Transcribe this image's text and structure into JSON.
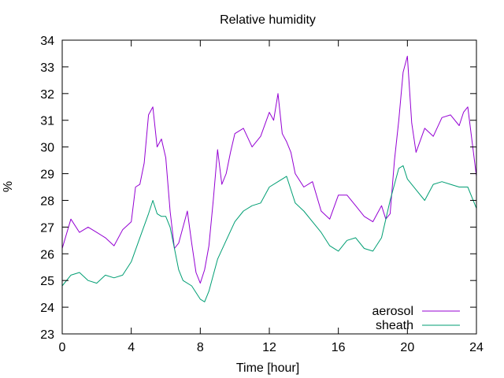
{
  "chart_data": {
    "type": "line",
    "title": "Relative humidity",
    "xlabel": "Time [hour]",
    "ylabel": "%",
    "xlim": [
      0,
      24
    ],
    "ylim": [
      23,
      34
    ],
    "xticks": [
      0,
      4,
      8,
      12,
      16,
      20,
      24
    ],
    "yticks": [
      23,
      24,
      25,
      26,
      27,
      28,
      29,
      30,
      31,
      32,
      33,
      34
    ],
    "grid": false,
    "legend_position": "bottom-right",
    "series": [
      {
        "name": "aerosol",
        "color": "#9400d3",
        "x": [
          0,
          0.5,
          1,
          1.5,
          2,
          2.5,
          3,
          3.5,
          4,
          4.25,
          4.5,
          4.75,
          5,
          5.25,
          5.5,
          5.75,
          6,
          6.25,
          6.5,
          6.75,
          7,
          7.25,
          7.5,
          7.75,
          8,
          8.25,
          8.5,
          8.75,
          9,
          9.25,
          9.5,
          9.75,
          10,
          10.5,
          11,
          11.5,
          12,
          12.25,
          12.5,
          12.75,
          13,
          13.25,
          13.5,
          14,
          14.5,
          15,
          15.5,
          16,
          16.5,
          17,
          17.5,
          18,
          18.25,
          18.5,
          18.75,
          19,
          19.25,
          19.5,
          19.75,
          20,
          20.25,
          20.5,
          21,
          21.5,
          22,
          22.5,
          23,
          23.25,
          23.5,
          23.75,
          24
        ],
        "values": [
          26.2,
          27.3,
          26.8,
          27.0,
          26.8,
          26.6,
          26.3,
          26.9,
          27.2,
          28.5,
          28.6,
          29.4,
          31.2,
          31.5,
          30.0,
          30.3,
          29.6,
          27.6,
          26.2,
          26.4,
          27.0,
          27.6,
          26.4,
          25.3,
          24.9,
          25.4,
          26.3,
          28.0,
          29.9,
          28.6,
          29.0,
          29.8,
          30.5,
          30.7,
          30.0,
          30.4,
          31.3,
          31.0,
          32.0,
          30.5,
          30.2,
          29.8,
          29.0,
          28.5,
          28.7,
          27.6,
          27.3,
          28.2,
          28.2,
          27.8,
          27.4,
          27.2,
          27.5,
          27.8,
          27.3,
          27.5,
          29.5,
          31.0,
          32.8,
          33.4,
          30.9,
          29.8,
          30.7,
          30.4,
          31.1,
          31.2,
          30.8,
          31.3,
          31.5,
          30.2,
          28.9
        ]
      },
      {
        "name": "sheath",
        "color": "#009e73",
        "x": [
          0,
          0.5,
          1,
          1.5,
          2,
          2.5,
          3,
          3.5,
          4,
          4.5,
          5,
          5.25,
          5.5,
          5.75,
          6,
          6.25,
          6.5,
          6.75,
          7,
          7.5,
          8,
          8.25,
          8.5,
          8.75,
          9,
          9.5,
          10,
          10.5,
          11,
          11.5,
          12,
          12.5,
          13,
          13.5,
          14,
          14.5,
          15,
          15.5,
          16,
          16.5,
          17,
          17.5,
          18,
          18.5,
          19,
          19.25,
          19.5,
          19.75,
          20,
          20.5,
          21,
          21.5,
          22,
          22.5,
          23,
          23.5,
          24
        ],
        "values": [
          24.8,
          25.2,
          25.3,
          25.0,
          24.9,
          25.2,
          25.1,
          25.2,
          25.7,
          26.6,
          27.5,
          28.0,
          27.5,
          27.4,
          27.4,
          27.0,
          26.2,
          25.4,
          25.0,
          24.8,
          24.3,
          24.2,
          24.6,
          25.2,
          25.8,
          26.5,
          27.2,
          27.6,
          27.8,
          27.9,
          28.5,
          28.7,
          28.9,
          27.9,
          27.6,
          27.2,
          26.8,
          26.3,
          26.1,
          26.5,
          26.6,
          26.2,
          26.1,
          26.6,
          28.0,
          28.6,
          29.2,
          29.3,
          28.8,
          28.4,
          28.0,
          28.6,
          28.7,
          28.6,
          28.5,
          28.5,
          27.7
        ]
      }
    ]
  }
}
